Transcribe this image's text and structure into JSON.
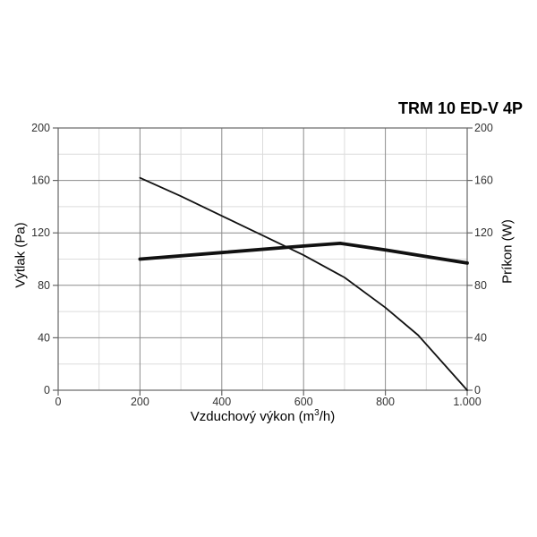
{
  "title": "TRM 10 ED-V 4P",
  "colors": {
    "background": "#ffffff",
    "line": "#111111",
    "grid_major": "#8c8c8c",
    "grid_minor": "#dcdcdc",
    "axis": "#666666",
    "tick_text": "#333333",
    "text": "#000000"
  },
  "chart_data": {
    "type": "line",
    "title": "TRM 10 ED-V 4P",
    "xlabel": "Vzduchový výkon (m³/h)",
    "xlabel_parts": {
      "pre": "Vzduchový výkon (m",
      "sup": "3",
      "post": "/h)"
    },
    "ylabel_left": "Výtlak (Pa)",
    "ylabel_right": "Príkon (W)",
    "xlim": [
      0,
      1000
    ],
    "ylim": [
      0,
      200
    ],
    "grid": "on",
    "legend": "none",
    "x_major_ticks": [
      0,
      200,
      400,
      600,
      800,
      1000
    ],
    "x_tick_labels": [
      "0",
      "200",
      "400",
      "600",
      "800",
      "1.000"
    ],
    "x_minor_ticks": [
      100,
      300,
      500,
      700,
      900
    ],
    "y_major_ticks": [
      0,
      40,
      80,
      120,
      160,
      200
    ],
    "y_tick_labels": [
      "0",
      "40",
      "80",
      "120",
      "160",
      "200"
    ],
    "y_minor_ticks": [
      20,
      60,
      100,
      140,
      180
    ],
    "series": [
      {
        "id": "vytlak",
        "name": "Výtlak (Pa)",
        "axis": "left",
        "weight": "thin",
        "points": [
          [
            200,
            162
          ],
          [
            300,
            148
          ],
          [
            400,
            133
          ],
          [
            500,
            118
          ],
          [
            600,
            103
          ],
          [
            700,
            86
          ],
          [
            800,
            63
          ],
          [
            880,
            42
          ],
          [
            1000,
            0
          ]
        ]
      },
      {
        "id": "prikon",
        "name": "Príkon (W)",
        "axis": "right",
        "weight": "thick",
        "points": [
          [
            200,
            100
          ],
          [
            400,
            105
          ],
          [
            600,
            110
          ],
          [
            690,
            112
          ],
          [
            800,
            107
          ],
          [
            900,
            102
          ],
          [
            1000,
            97
          ]
        ]
      }
    ]
  }
}
